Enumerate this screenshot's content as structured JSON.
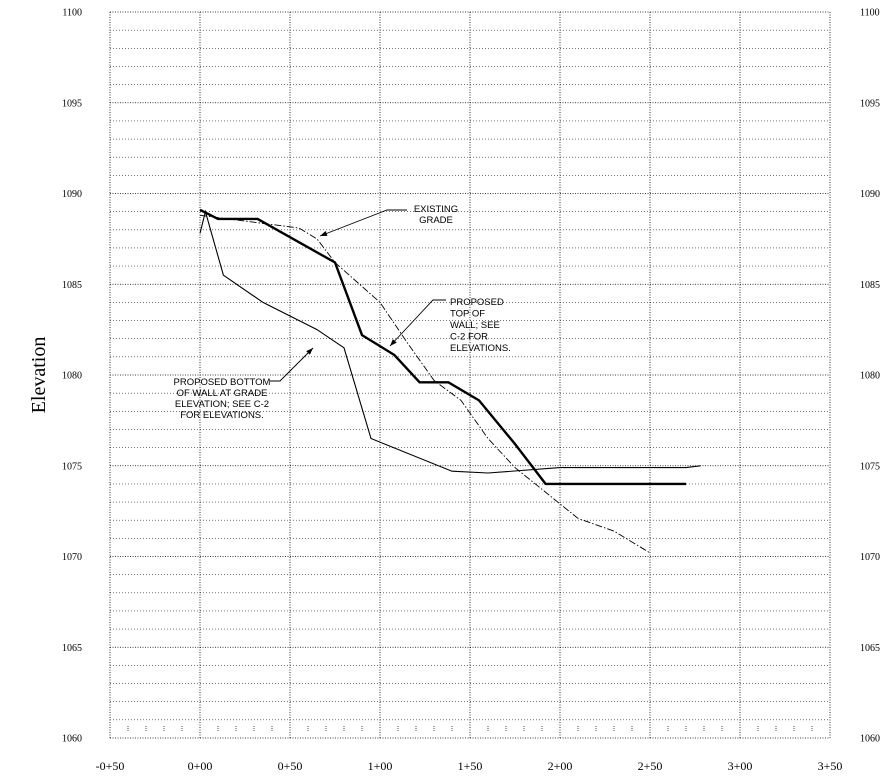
{
  "chart_data": {
    "type": "line",
    "ylabel": "Elevation",
    "xlabel": "",
    "xlim": [
      -50,
      350
    ],
    "ylim": [
      1060,
      1100
    ],
    "x_tick_labels": [
      "-0+50",
      "0+00",
      "0+50",
      "1+00",
      "1+50",
      "2+00",
      "2+50",
      "3+00",
      "3+50"
    ],
    "y_tick_labels": [
      "1060",
      "1065",
      "1070",
      "1075",
      "1080",
      "1085",
      "1090",
      "1095",
      "1100"
    ],
    "grid": true,
    "series": [
      {
        "style": "dash-dot",
        "x": [
          0,
          55,
          65,
          75,
          100,
          115,
          130,
          145,
          160,
          175,
          190,
          200,
          210,
          230,
          250
        ],
        "y": [
          1088.8,
          1088.1,
          1087.5,
          1086.2,
          1084.0,
          1081.8,
          1079.7,
          1078.6,
          1076.5,
          1074.9,
          1073.7,
          1072.9,
          1072.1,
          1071.4,
          1070.2
        ]
      },
      {
        "style": "thick",
        "x": [
          0,
          10,
          32,
          75,
          90,
          108,
          122,
          138,
          155,
          175,
          192,
          270
        ],
        "y": [
          1089.1,
          1088.6,
          1088.6,
          1086.2,
          1082.2,
          1081.1,
          1079.6,
          1079.6,
          1078.6,
          1076.2,
          1074.0,
          1074.0
        ]
      },
      {
        "style": "thin",
        "x": [
          0,
          3,
          13,
          35,
          65,
          80,
          95,
          140,
          160,
          200,
          270,
          278
        ],
        "y": [
          1087.8,
          1089.0,
          1085.5,
          1084.0,
          1082.5,
          1081.5,
          1076.5,
          1074.7,
          1074.6,
          1074.9,
          1074.9,
          1075.0
        ]
      }
    ],
    "annotations": [
      {
        "lines": [
          "EXISTING",
          "GRADE"
        ]
      },
      {
        "lines": [
          "PROPOSED",
          "TOP OF",
          "WALL; SEE",
          "C-2 FOR",
          "ELEVATIONS."
        ]
      },
      {
        "lines": [
          "PROPOSED BOTTOM",
          "OF WALL AT GRADE",
          "ELEVATION; SEE C-2",
          "FOR ELEVATIONS."
        ]
      }
    ]
  }
}
